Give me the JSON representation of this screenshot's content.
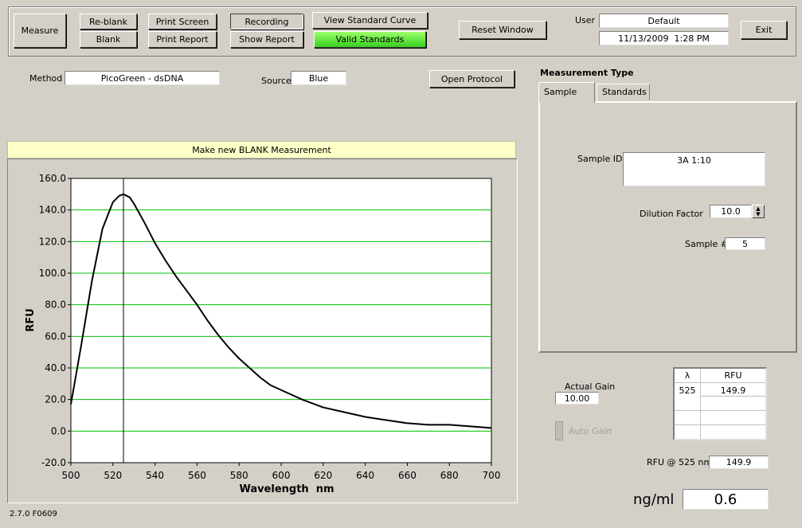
{
  "toolbar": {
    "measure": "Measure",
    "reblank": "Re-blank",
    "blank": "Blank",
    "print_screen": "Print Screen",
    "print_report": "Print Report",
    "recording": "Recording",
    "show_report": "Show Report",
    "view_standard_curve": "View Standard Curve",
    "valid_standards": "Valid Standards",
    "reset_window": "Reset Window",
    "user_label": "User",
    "user": "Default",
    "datetime": "11/13/2009  1:28 PM",
    "exit": "Exit"
  },
  "method": {
    "label": "Method",
    "value": "PicoGreen - dsDNA",
    "source_label": "Source",
    "source": "Blue",
    "open_protocol": "Open Protocol"
  },
  "banner": "Make new BLANK Measurement",
  "chart_data": {
    "type": "line",
    "x_label": "Wavelength  nm",
    "y_label": "RFU",
    "x": [
      500,
      505,
      510,
      515,
      520,
      523,
      525,
      528,
      530,
      535,
      540,
      545,
      550,
      555,
      560,
      565,
      570,
      575,
      580,
      585,
      590,
      595,
      600,
      610,
      620,
      630,
      640,
      650,
      660,
      670,
      680,
      690,
      700
    ],
    "series": [
      {
        "name": "RFU",
        "color": "#000000",
        "values": [
          17,
          55,
          95,
          128,
          145,
          149,
          150,
          148,
          144,
          132,
          119,
          108,
          98,
          89,
          80,
          70,
          61,
          53,
          46,
          40,
          34,
          29,
          26,
          20,
          15,
          12,
          9,
          7,
          5,
          4,
          4,
          3,
          2
        ]
      }
    ],
    "cursor_x": 525,
    "grid": true,
    "grid_color": "#00c000",
    "xlim": [
      500,
      700
    ],
    "xticks": [
      500,
      520,
      540,
      560,
      580,
      600,
      620,
      640,
      660,
      680,
      700
    ],
    "ylim": [
      -20,
      160
    ],
    "yticks": [
      {
        "value": -20,
        "label": "-20.0"
      },
      {
        "value": 0,
        "label": "0.0"
      },
      {
        "value": 20,
        "label": "20.0"
      },
      {
        "value": 40,
        "label": "40.0"
      },
      {
        "value": 60,
        "label": "60.0"
      },
      {
        "value": 80,
        "label": "80.0"
      },
      {
        "value": 100,
        "label": "100.0"
      },
      {
        "value": 120,
        "label": "120.0"
      },
      {
        "value": 140,
        "label": "140.0"
      },
      {
        "value": 160,
        "label": "160.0"
      }
    ]
  },
  "measurement": {
    "title": "Measurement Type",
    "tabs": [
      "Sample",
      "Standards"
    ],
    "sample_id_label": "Sample ID",
    "sample_id": "3A 1:10",
    "dilution_label": "Dilution Factor",
    "dilution": "10.0",
    "sample_no_label": "Sample #",
    "sample_no": "5"
  },
  "gain": {
    "label": "Actual Gain",
    "value": "10.00",
    "auto": "Auto Gain"
  },
  "table": {
    "headers": [
      "λ",
      "RFU"
    ],
    "rows": [
      [
        "525",
        "149.9"
      ]
    ]
  },
  "rfu_at": {
    "label": "RFU @ 525 nm",
    "value": "149.9"
  },
  "result": {
    "unit": "ng/ml",
    "value": "0.6"
  },
  "version": "2.7.0 F0609"
}
